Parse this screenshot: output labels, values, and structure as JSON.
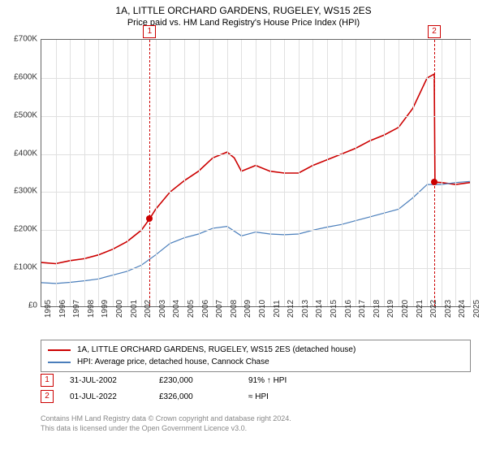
{
  "chart": {
    "title": "1A, LITTLE ORCHARD GARDENS, RUGELEY, WS15 2ES",
    "subtitle": "Price paid vs. HM Land Registry's House Price Index (HPI)",
    "type": "line",
    "background_color": "#ffffff",
    "grid_color": "#e0e0e0",
    "border_color": "#666666",
    "x": {
      "min": 1995,
      "max": 2025,
      "ticks": [
        1995,
        1996,
        1997,
        1998,
        1999,
        2000,
        2001,
        2002,
        2003,
        2004,
        2005,
        2006,
        2007,
        2008,
        2009,
        2010,
        2011,
        2012,
        2013,
        2014,
        2015,
        2016,
        2017,
        2018,
        2019,
        2020,
        2021,
        2022,
        2023,
        2024,
        2025
      ],
      "fontsize": 10,
      "rotation": -90
    },
    "y": {
      "min": 0,
      "max": 700000,
      "ticks": [
        0,
        100000,
        200000,
        300000,
        400000,
        500000,
        600000,
        700000
      ],
      "labels": [
        "£0",
        "£100K",
        "£200K",
        "£300K",
        "£400K",
        "£500K",
        "£600K",
        "£700K"
      ],
      "fontsize": 10
    },
    "series": [
      {
        "name": "1A, LITTLE ORCHARD GARDENS, RUGELEY, WS15 2ES (detached house)",
        "color": "#cc0000",
        "width": 1.6,
        "data": [
          [
            1995,
            115000
          ],
          [
            1996,
            112000
          ],
          [
            1997,
            120000
          ],
          [
            1998,
            125000
          ],
          [
            1999,
            135000
          ],
          [
            2000,
            150000
          ],
          [
            2001,
            170000
          ],
          [
            2002,
            200000
          ],
          [
            2002.58,
            230000
          ],
          [
            2003,
            255000
          ],
          [
            2004,
            300000
          ],
          [
            2005,
            330000
          ],
          [
            2006,
            355000
          ],
          [
            2007,
            390000
          ],
          [
            2008,
            405000
          ],
          [
            2008.5,
            390000
          ],
          [
            2009,
            355000
          ],
          [
            2010,
            370000
          ],
          [
            2011,
            355000
          ],
          [
            2012,
            350000
          ],
          [
            2013,
            350000
          ],
          [
            2014,
            370000
          ],
          [
            2015,
            385000
          ],
          [
            2016,
            400000
          ],
          [
            2017,
            415000
          ],
          [
            2018,
            435000
          ],
          [
            2019,
            450000
          ],
          [
            2020,
            470000
          ],
          [
            2021,
            520000
          ],
          [
            2022,
            600000
          ],
          [
            2022.5,
            610000
          ],
          [
            2022.55,
            326000
          ],
          [
            2023,
            325000
          ],
          [
            2024,
            320000
          ],
          [
            2025,
            325000
          ]
        ]
      },
      {
        "name": "HPI: Average price, detached house, Cannock Chase",
        "color": "#4a7ebb",
        "width": 1.2,
        "data": [
          [
            1995,
            62000
          ],
          [
            1996,
            60000
          ],
          [
            1997,
            63000
          ],
          [
            1998,
            67000
          ],
          [
            1999,
            72000
          ],
          [
            2000,
            82000
          ],
          [
            2001,
            92000
          ],
          [
            2002,
            108000
          ],
          [
            2003,
            135000
          ],
          [
            2004,
            165000
          ],
          [
            2005,
            180000
          ],
          [
            2006,
            190000
          ],
          [
            2007,
            205000
          ],
          [
            2008,
            210000
          ],
          [
            2009,
            185000
          ],
          [
            2010,
            195000
          ],
          [
            2011,
            190000
          ],
          [
            2012,
            188000
          ],
          [
            2013,
            190000
          ],
          [
            2014,
            200000
          ],
          [
            2015,
            208000
          ],
          [
            2016,
            215000
          ],
          [
            2017,
            225000
          ],
          [
            2018,
            235000
          ],
          [
            2019,
            245000
          ],
          [
            2020,
            255000
          ],
          [
            2021,
            285000
          ],
          [
            2022,
            320000
          ],
          [
            2023,
            320000
          ],
          [
            2024,
            325000
          ],
          [
            2025,
            328000
          ]
        ]
      }
    ],
    "markers": [
      {
        "id": "1",
        "x": 2002.58,
        "y": 230000,
        "dot_color": "#cc0000"
      },
      {
        "id": "2",
        "x": 2022.5,
        "y": 326000,
        "dot_color": "#cc0000"
      }
    ]
  },
  "legend": {
    "items": [
      {
        "color": "#cc0000",
        "label": "1A, LITTLE ORCHARD GARDENS, RUGELEY, WS15 2ES (detached house)"
      },
      {
        "color": "#4a7ebb",
        "label": "HPI: Average price, detached house, Cannock Chase"
      }
    ]
  },
  "prices": {
    "rows": [
      {
        "id": "1",
        "date": "31-JUL-2002",
        "price": "£230,000",
        "pct": "91% ↑ HPI"
      },
      {
        "id": "2",
        "date": "01-JUL-2022",
        "price": "£326,000",
        "pct": "≈ HPI"
      }
    ]
  },
  "footer": {
    "line1": "Contains HM Land Registry data © Crown copyright and database right 2024.",
    "line2": "This data is licensed under the Open Government Licence v3.0."
  }
}
